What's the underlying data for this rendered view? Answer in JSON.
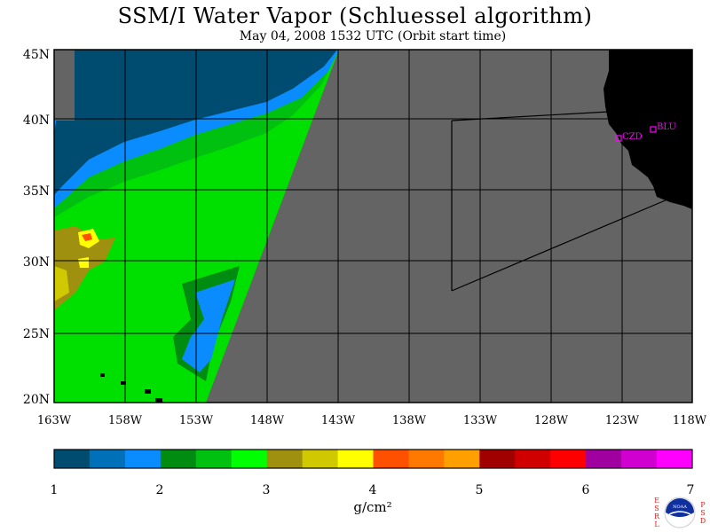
{
  "title": "SSM/I Water Vapor (Schluessel algorithm)",
  "subtitle": "May 04, 2008  1532 UTC  (Orbit start time)",
  "lat_labels": [
    "45N",
    "40N",
    "35N",
    "30N",
    "25N",
    "20N"
  ],
  "lon_labels": [
    "163W",
    "158W",
    "153W",
    "148W",
    "143W",
    "138W",
    "133W",
    "128W",
    "123W",
    "118W"
  ],
  "stations": [
    {
      "label": "CZD"
    },
    {
      "label": "BLU"
    }
  ],
  "colorbar": {
    "colors": [
      "#004c70",
      "#0070b8",
      "#0a8cff",
      "#008c10",
      "#00c010",
      "#00ff00",
      "#a09010",
      "#d0c800",
      "#ffff00",
      "#ff5000",
      "#ff7800",
      "#ffa000",
      "#a00000",
      "#d00000",
      "#ff0000",
      "#a000a0",
      "#d000d0",
      "#ff00ff"
    ],
    "tick_labels": [
      "1",
      "2",
      "3",
      "4",
      "5",
      "6",
      "7"
    ],
    "unit": "g/cm²"
  },
  "logo": {
    "left_letters": [
      "E",
      "S",
      "R",
      "L"
    ],
    "right_letters": [
      "P",
      "S",
      "D"
    ],
    "badge_text": "NOAA",
    "accent_color": "#e02020",
    "badge_color": "#1030a0"
  },
  "colors": {
    "land": "#000000",
    "no_data": "#646464",
    "magenta": "#ff00ff"
  }
}
